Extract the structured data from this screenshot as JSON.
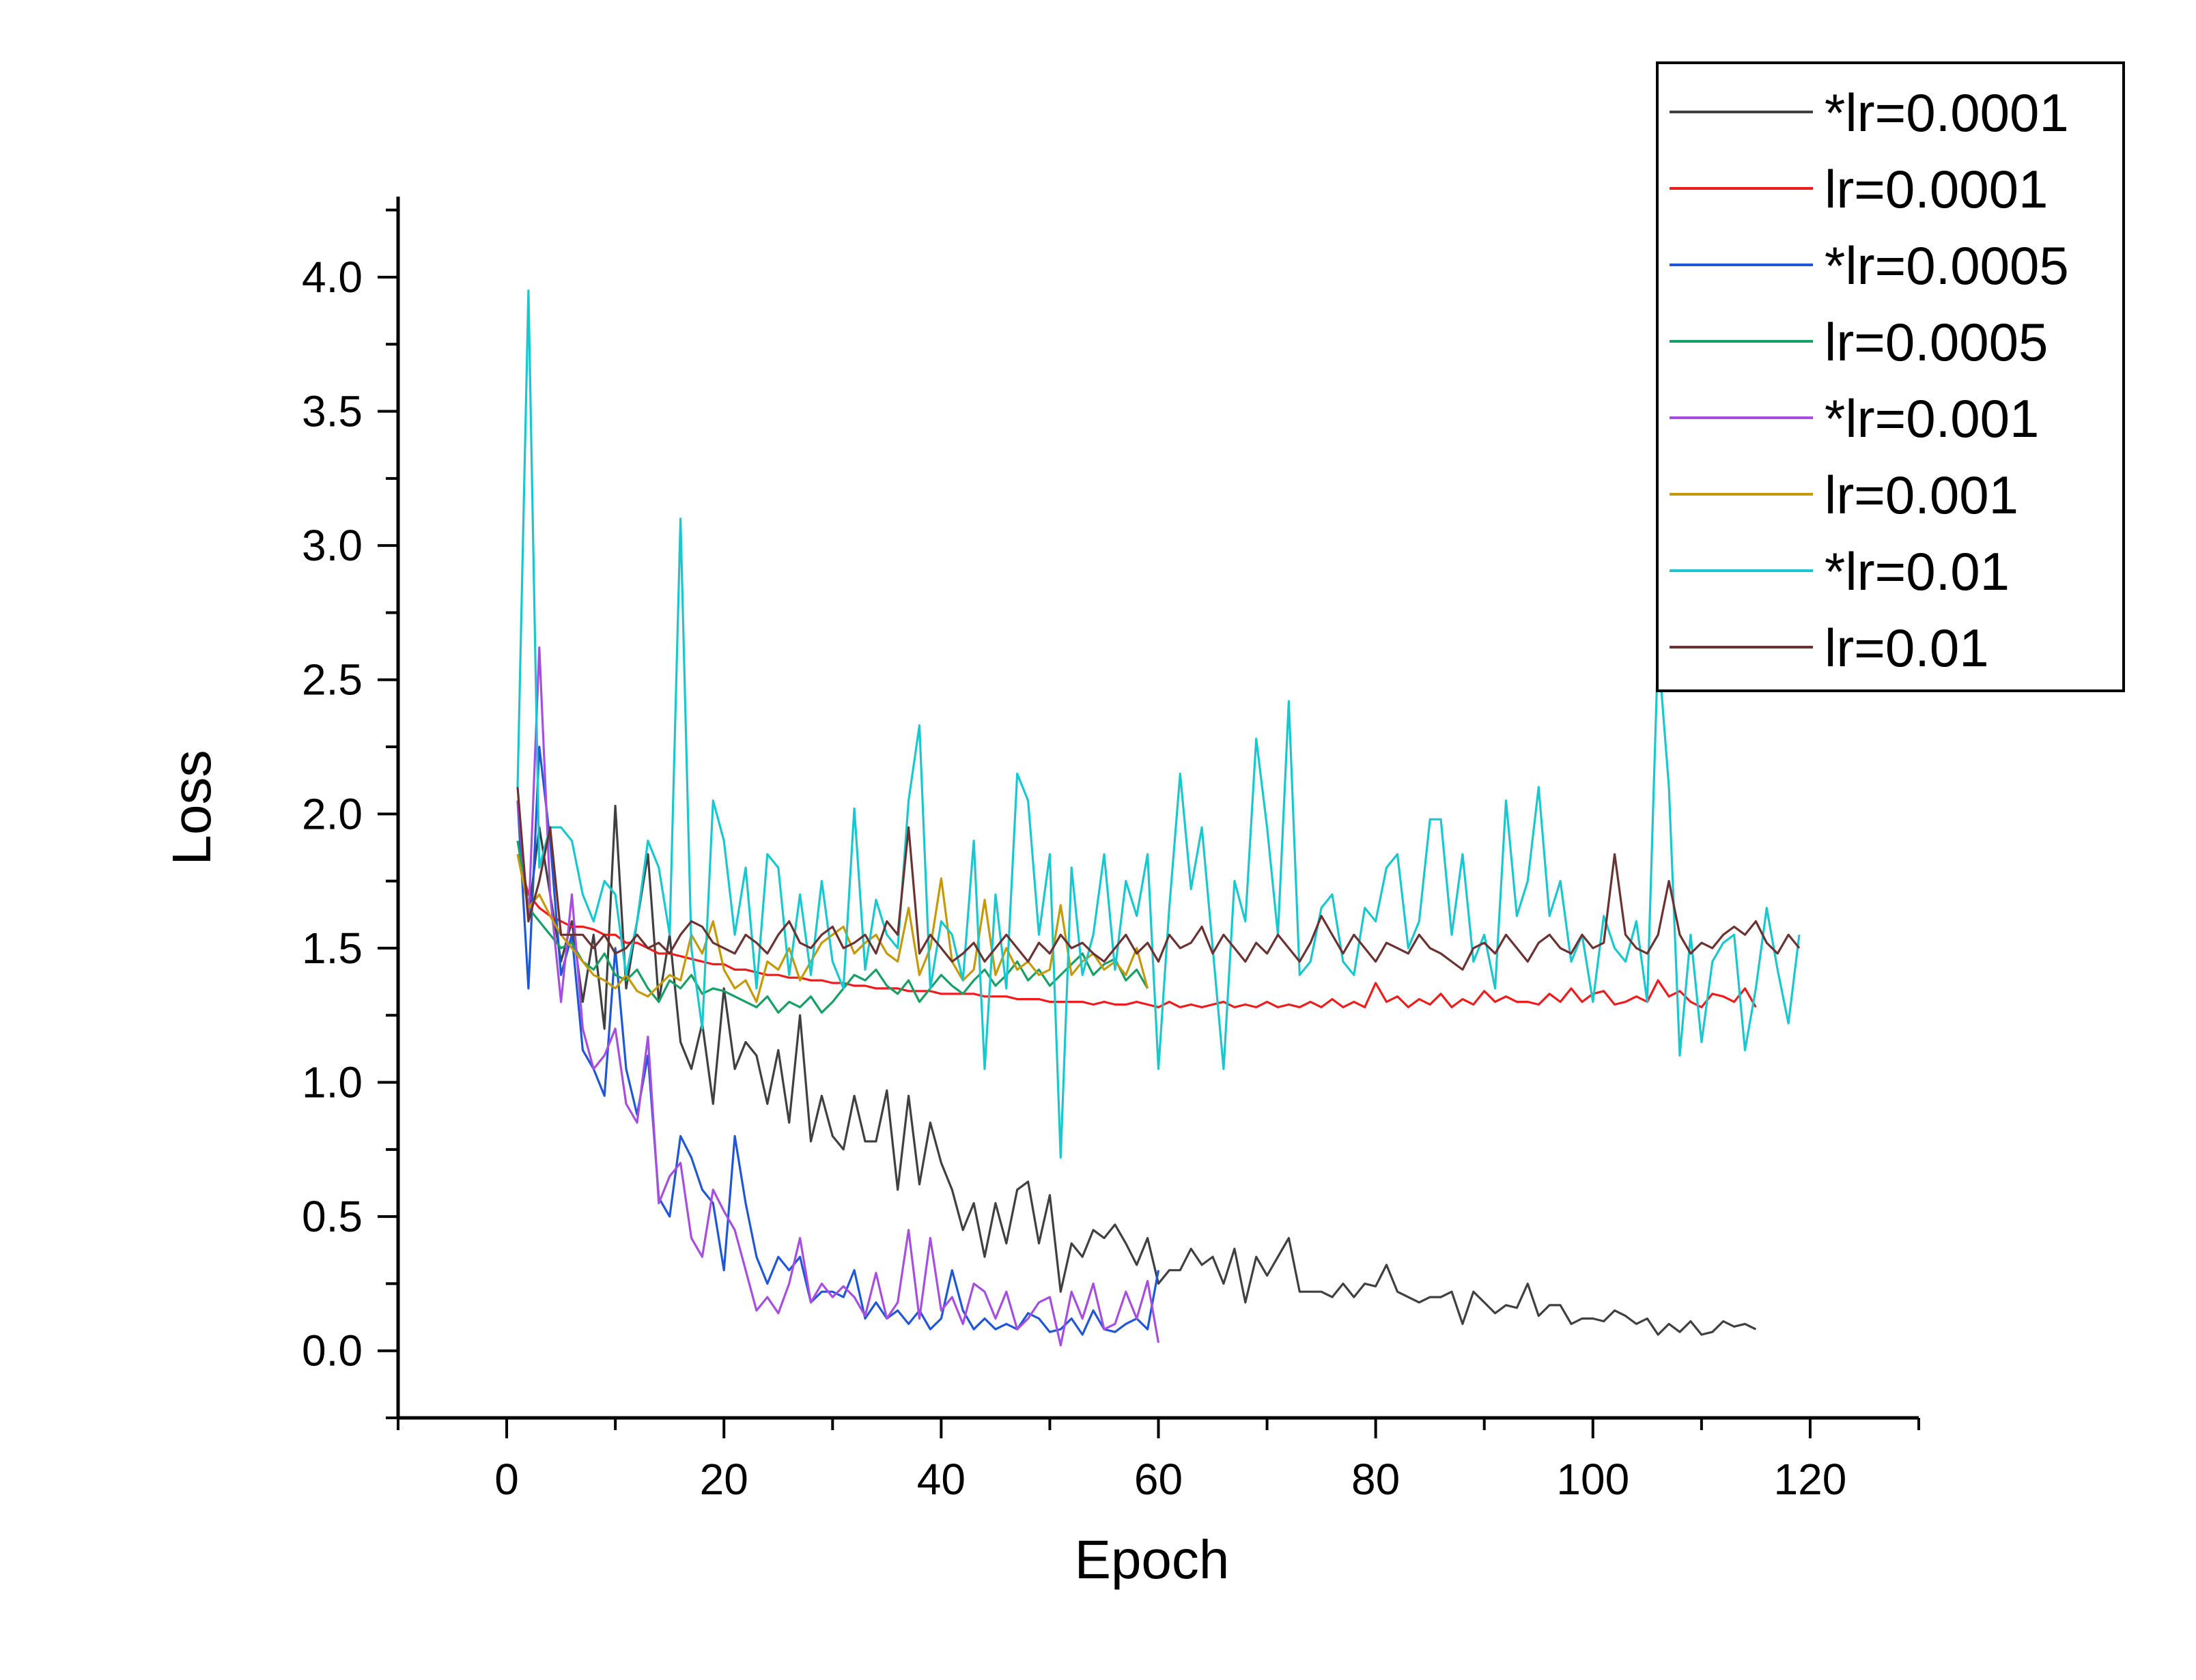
{
  "chart_data": {
    "type": "line",
    "title": "",
    "xlabel": "Epoch",
    "ylabel": "Loss",
    "xlim": [
      -10,
      130
    ],
    "ylim": [
      -0.25,
      4.3
    ],
    "xticks": [
      0,
      20,
      40,
      60,
      80,
      100,
      120
    ],
    "yticks": [
      0.0,
      0.5,
      1.0,
      1.5,
      2.0,
      2.5,
      3.0,
      3.5,
      4.0
    ],
    "xtick_labels": [
      "0",
      "20",
      "40",
      "60",
      "80",
      "100",
      "120"
    ],
    "ytick_labels": [
      "0.0",
      "0.5",
      "1.0",
      "1.5",
      "2.0",
      "2.5",
      "3.0",
      "3.5",
      "4.0"
    ],
    "grid": false,
    "legend_position": "top-right",
    "series": [
      {
        "name": "*lr=0.0001",
        "color": "#404040",
        "x_start": 1,
        "values": [
          2.05,
          1.62,
          1.95,
          1.7,
          1.45,
          1.6,
          1.3,
          1.55,
          1.2,
          2.03,
          1.35,
          1.6,
          1.85,
          1.3,
          1.55,
          1.15,
          1.05,
          1.22,
          0.92,
          1.35,
          1.05,
          1.15,
          1.1,
          0.92,
          1.12,
          0.85,
          1.25,
          0.78,
          0.95,
          0.8,
          0.75,
          0.95,
          0.78,
          0.78,
          0.97,
          0.6,
          0.95,
          0.62,
          0.85,
          0.7,
          0.6,
          0.45,
          0.55,
          0.35,
          0.55,
          0.4,
          0.6,
          0.63,
          0.4,
          0.58,
          0.22,
          0.4,
          0.35,
          0.45,
          0.42,
          0.47,
          0.4,
          0.32,
          0.42,
          0.25,
          0.3,
          0.3,
          0.38,
          0.32,
          0.35,
          0.25,
          0.38,
          0.18,
          0.35,
          0.28,
          0.35,
          0.42,
          0.22,
          0.22,
          0.22,
          0.2,
          0.25,
          0.2,
          0.25,
          0.24,
          0.32,
          0.22,
          0.2,
          0.18,
          0.2,
          0.2,
          0.22,
          0.1,
          0.22,
          0.18,
          0.14,
          0.17,
          0.16,
          0.25,
          0.13,
          0.17,
          0.17,
          0.1,
          0.12,
          0.12,
          0.11,
          0.15,
          0.13,
          0.1,
          0.12,
          0.06,
          0.1,
          0.07,
          0.11,
          0.06,
          0.07,
          0.11,
          0.09,
          0.1,
          0.08
        ]
      },
      {
        "name": "lr=0.0001",
        "color": "#ee1c1c",
        "x_start": 1,
        "values": [
          1.85,
          1.7,
          1.65,
          1.62,
          1.6,
          1.58,
          1.58,
          1.57,
          1.55,
          1.55,
          1.52,
          1.52,
          1.5,
          1.48,
          1.48,
          1.47,
          1.46,
          1.45,
          1.44,
          1.44,
          1.42,
          1.42,
          1.41,
          1.4,
          1.4,
          1.39,
          1.39,
          1.38,
          1.38,
          1.37,
          1.37,
          1.36,
          1.36,
          1.35,
          1.35,
          1.35,
          1.34,
          1.34,
          1.34,
          1.33,
          1.33,
          1.33,
          1.33,
          1.32,
          1.32,
          1.32,
          1.31,
          1.31,
          1.31,
          1.3,
          1.3,
          1.3,
          1.3,
          1.29,
          1.3,
          1.29,
          1.29,
          1.3,
          1.29,
          1.28,
          1.3,
          1.28,
          1.29,
          1.28,
          1.29,
          1.3,
          1.28,
          1.29,
          1.28,
          1.3,
          1.28,
          1.29,
          1.28,
          1.3,
          1.28,
          1.31,
          1.28,
          1.3,
          1.28,
          1.37,
          1.3,
          1.32,
          1.28,
          1.31,
          1.29,
          1.33,
          1.28,
          1.31,
          1.29,
          1.34,
          1.3,
          1.32,
          1.3,
          1.3,
          1.29,
          1.33,
          1.3,
          1.35,
          1.3,
          1.33,
          1.34,
          1.29,
          1.3,
          1.32,
          1.3,
          1.38,
          1.32,
          1.34,
          1.3,
          1.28,
          1.33,
          1.32,
          1.3,
          1.35,
          1.28
        ]
      },
      {
        "name": "*lr=0.0005",
        "color": "#1f57d6",
        "x_start": 1,
        "values": [
          2.05,
          1.35,
          2.25,
          1.9,
          1.4,
          1.55,
          1.12,
          1.05,
          0.95,
          1.5,
          1.05,
          0.88,
          1.1,
          0.57,
          0.5,
          0.8,
          0.72,
          0.6,
          0.55,
          0.3,
          0.8,
          0.55,
          0.35,
          0.25,
          0.35,
          0.3,
          0.35,
          0.18,
          0.22,
          0.22,
          0.2,
          0.3,
          0.12,
          0.18,
          0.12,
          0.15,
          0.1,
          0.15,
          0.08,
          0.12,
          0.3,
          0.15,
          0.08,
          0.12,
          0.08,
          0.1,
          0.08,
          0.14,
          0.12,
          0.07,
          0.08,
          0.12,
          0.06,
          0.15,
          0.08,
          0.07,
          0.1,
          0.12,
          0.08,
          0.3
        ]
      },
      {
        "name": "lr=0.0005",
        "color": "#17a065",
        "x_start": 1,
        "values": [
          1.9,
          1.65,
          1.6,
          1.55,
          1.5,
          1.52,
          1.45,
          1.42,
          1.48,
          1.4,
          1.38,
          1.42,
          1.35,
          1.3,
          1.38,
          1.35,
          1.4,
          1.33,
          1.35,
          1.34,
          1.32,
          1.3,
          1.28,
          1.32,
          1.26,
          1.3,
          1.28,
          1.32,
          1.26,
          1.3,
          1.35,
          1.4,
          1.38,
          1.42,
          1.36,
          1.33,
          1.38,
          1.3,
          1.35,
          1.4,
          1.36,
          1.33,
          1.38,
          1.42,
          1.36,
          1.4,
          1.45,
          1.38,
          1.42,
          1.36,
          1.4,
          1.44,
          1.48,
          1.4,
          1.44,
          1.46,
          1.38,
          1.42,
          1.35
        ]
      },
      {
        "name": "*lr=0.001",
        "color": "#a64ee0",
        "x_start": 1,
        "values": [
          2.05,
          1.6,
          2.62,
          1.7,
          1.3,
          1.7,
          1.2,
          1.05,
          1.1,
          1.2,
          0.92,
          0.85,
          1.17,
          0.55,
          0.65,
          0.7,
          0.42,
          0.35,
          0.6,
          0.52,
          0.45,
          0.3,
          0.15,
          0.2,
          0.14,
          0.25,
          0.42,
          0.18,
          0.25,
          0.2,
          0.24,
          0.2,
          0.13,
          0.29,
          0.12,
          0.18,
          0.45,
          0.12,
          0.42,
          0.15,
          0.2,
          0.1,
          0.25,
          0.22,
          0.12,
          0.22,
          0.08,
          0.12,
          0.18,
          0.2,
          0.02,
          0.22,
          0.12,
          0.25,
          0.08,
          0.1,
          0.22,
          0.12,
          0.26,
          0.03
        ]
      },
      {
        "name": "lr=0.001",
        "color": "#c49a0a",
        "x_start": 1,
        "values": [
          1.85,
          1.65,
          1.7,
          1.62,
          1.55,
          1.5,
          1.45,
          1.4,
          1.38,
          1.35,
          1.4,
          1.34,
          1.32,
          1.36,
          1.4,
          1.38,
          1.55,
          1.48,
          1.6,
          1.42,
          1.35,
          1.38,
          1.3,
          1.45,
          1.42,
          1.5,
          1.38,
          1.45,
          1.52,
          1.55,
          1.58,
          1.48,
          1.52,
          1.55,
          1.48,
          1.45,
          1.65,
          1.4,
          1.5,
          1.76,
          1.45,
          1.38,
          1.42,
          1.68,
          1.4,
          1.5,
          1.42,
          1.45,
          1.4,
          1.42,
          1.66,
          1.4,
          1.45,
          1.48,
          1.42,
          1.45,
          1.4,
          1.5,
          1.35
        ]
      },
      {
        "name": "*lr=0.01",
        "color": "#19c8cf",
        "x_start": 1,
        "values": [
          2.1,
          3.95,
          1.8,
          1.95,
          1.95,
          1.9,
          1.7,
          1.6,
          1.75,
          1.7,
          1.4,
          1.6,
          1.9,
          1.8,
          1.55,
          3.1,
          1.5,
          1.2,
          2.05,
          1.9,
          1.55,
          1.8,
          1.35,
          1.85,
          1.8,
          1.4,
          1.7,
          1.4,
          1.75,
          1.45,
          1.35,
          2.02,
          1.42,
          1.68,
          1.55,
          1.5,
          2.05,
          2.33,
          1.35,
          1.6,
          1.55,
          1.38,
          1.9,
          1.05,
          1.7,
          1.35,
          2.15,
          2.05,
          1.55,
          1.85,
          0.72,
          1.8,
          1.4,
          1.55,
          1.85,
          1.42,
          1.75,
          1.62,
          1.85,
          1.05,
          1.65,
          2.15,
          1.72,
          1.95,
          1.5,
          1.05,
          1.75,
          1.6,
          2.28,
          1.95,
          1.55,
          2.42,
          1.4,
          1.45,
          1.65,
          1.7,
          1.45,
          1.4,
          1.65,
          1.6,
          1.8,
          1.85,
          1.5,
          1.6,
          1.98,
          1.98,
          1.55,
          1.85,
          1.45,
          1.55,
          1.35,
          2.05,
          1.62,
          1.75,
          2.1,
          1.62,
          1.75,
          1.45,
          1.55,
          1.3,
          1.62,
          1.5,
          1.45,
          1.6,
          1.3,
          2.62,
          2.1,
          1.1,
          1.55,
          1.15,
          1.45,
          1.52,
          1.55,
          1.12,
          1.35,
          1.65,
          1.42,
          1.22,
          1.55
        ]
      },
      {
        "name": "lr=0.01",
        "color": "#6b3232",
        "x_start": 1,
        "values": [
          2.1,
          1.6,
          1.75,
          1.95,
          1.55,
          1.55,
          1.55,
          1.5,
          1.55,
          1.48,
          1.5,
          1.55,
          1.5,
          1.52,
          1.48,
          1.55,
          1.6,
          1.58,
          1.52,
          1.5,
          1.48,
          1.55,
          1.52,
          1.48,
          1.55,
          1.6,
          1.52,
          1.5,
          1.55,
          1.58,
          1.5,
          1.52,
          1.55,
          1.48,
          1.6,
          1.55,
          1.95,
          1.48,
          1.55,
          1.5,
          1.45,
          1.48,
          1.52,
          1.45,
          1.5,
          1.55,
          1.5,
          1.45,
          1.52,
          1.48,
          1.55,
          1.5,
          1.52,
          1.48,
          1.45,
          1.5,
          1.55,
          1.48,
          1.52,
          1.45,
          1.55,
          1.5,
          1.52,
          1.58,
          1.48,
          1.55,
          1.5,
          1.45,
          1.52,
          1.48,
          1.55,
          1.5,
          1.45,
          1.52,
          1.62,
          1.55,
          1.48,
          1.55,
          1.5,
          1.45,
          1.52,
          1.5,
          1.48,
          1.55,
          1.5,
          1.48,
          1.45,
          1.42,
          1.5,
          1.52,
          1.48,
          1.55,
          1.5,
          1.45,
          1.52,
          1.55,
          1.5,
          1.48,
          1.55,
          1.5,
          1.52,
          1.85,
          1.55,
          1.5,
          1.48,
          1.55,
          1.75,
          1.55,
          1.48,
          1.52,
          1.5,
          1.55,
          1.58,
          1.55,
          1.6,
          1.52,
          1.48,
          1.55,
          1.5
        ]
      }
    ]
  }
}
